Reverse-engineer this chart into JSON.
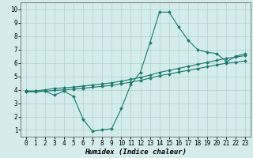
{
  "xlabel": "Humidex (Indice chaleur)",
  "bg_color": "#d4ecec",
  "grid_color": "#b8d4d4",
  "line_color": "#1a7a6a",
  "xlim": [
    -0.5,
    23.5
  ],
  "ylim": [
    0.5,
    10.5
  ],
  "xticks": [
    0,
    1,
    2,
    3,
    4,
    5,
    6,
    7,
    8,
    9,
    10,
    11,
    12,
    13,
    14,
    15,
    16,
    17,
    18,
    19,
    20,
    21,
    22,
    23
  ],
  "yticks": [
    1,
    2,
    3,
    4,
    5,
    6,
    7,
    8,
    9,
    10
  ],
  "line1_x": [
    0,
    1,
    2,
    3,
    4,
    5,
    6,
    7,
    8,
    9,
    10,
    11,
    12,
    13,
    14,
    15,
    16,
    17,
    18,
    19,
    20,
    21,
    22,
    23
  ],
  "line1_y": [
    3.9,
    3.9,
    3.9,
    3.6,
    3.9,
    3.5,
    1.8,
    0.9,
    1.0,
    1.1,
    2.6,
    4.4,
    5.3,
    7.5,
    9.8,
    9.8,
    8.7,
    7.7,
    7.0,
    6.8,
    6.7,
    6.1,
    6.5,
    6.7
  ],
  "line2_x": [
    0,
    1,
    2,
    3,
    4,
    5,
    6,
    7,
    8,
    9,
    10,
    11,
    12,
    13,
    14,
    15,
    16,
    17,
    18,
    19,
    20,
    21,
    22,
    23
  ],
  "line2_y": [
    3.9,
    3.9,
    4.0,
    4.1,
    4.15,
    4.2,
    4.28,
    4.36,
    4.44,
    4.52,
    4.65,
    4.78,
    4.92,
    5.1,
    5.3,
    5.45,
    5.6,
    5.75,
    5.9,
    6.05,
    6.2,
    6.35,
    6.45,
    6.55
  ],
  "line3_x": [
    0,
    1,
    2,
    3,
    4,
    5,
    6,
    7,
    8,
    9,
    10,
    11,
    12,
    13,
    14,
    15,
    16,
    17,
    18,
    19,
    20,
    21,
    22,
    23
  ],
  "line3_y": [
    3.85,
    3.85,
    3.9,
    3.95,
    4.0,
    4.05,
    4.12,
    4.19,
    4.26,
    4.33,
    4.45,
    4.57,
    4.7,
    4.87,
    5.05,
    5.18,
    5.32,
    5.45,
    5.58,
    5.72,
    5.86,
    5.98,
    6.06,
    6.16
  ]
}
